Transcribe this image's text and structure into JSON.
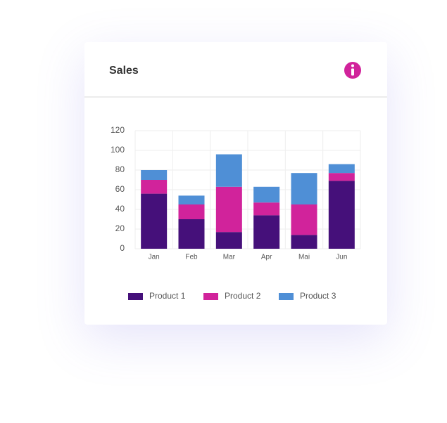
{
  "chart_data": {
    "type": "stacked_bar",
    "title": "Sales",
    "categories": [
      "Jan",
      "Feb",
      "Mar",
      "Apr",
      "Mai",
      "Jun"
    ],
    "series": [
      {
        "name": "Product 1",
        "color": "#45107a",
        "values": [
          56,
          30,
          17,
          34,
          14,
          69
        ]
      },
      {
        "name": "Product 2",
        "color": "#d1239b",
        "values": [
          14,
          15,
          46,
          13,
          31,
          8
        ]
      },
      {
        "name": "Product 3",
        "color": "#4f8fd6",
        "values": [
          10,
          9,
          33,
          16,
          32,
          9
        ]
      }
    ],
    "ylim": [
      0,
      120
    ],
    "yticks": [
      0,
      20,
      40,
      60,
      80,
      100,
      120
    ],
    "grid": true,
    "legend": "bottom"
  }
}
